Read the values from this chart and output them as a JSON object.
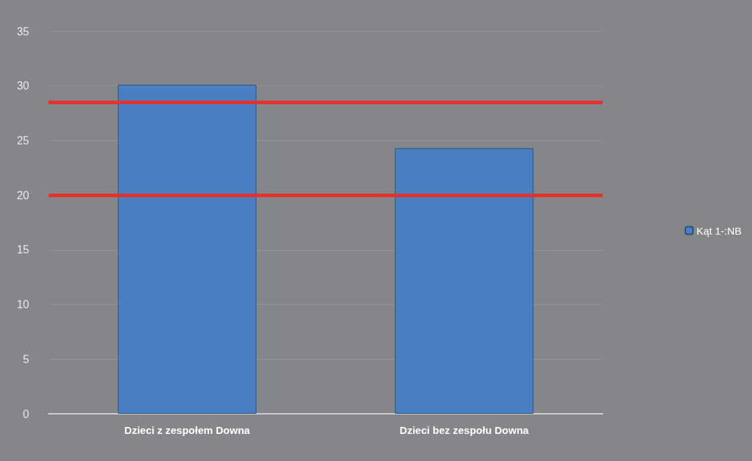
{
  "chart_data": {
    "type": "bar",
    "categories": [
      "Dzieci z zespołem Downa",
      "Dzieci bez zespołu Downa"
    ],
    "series": [
      {
        "name": "Kąt 1-:NB",
        "color": "#4a7fc1",
        "values": [
          30.1,
          24.3
        ]
      }
    ],
    "ylim": [
      0,
      35
    ],
    "yticks": [
      0,
      5,
      10,
      15,
      20,
      25,
      30,
      35
    ],
    "grid": "y",
    "legend": "right",
    "ref_lines": [
      {
        "axis": "y",
        "value": 28.5,
        "color": "#e8302a"
      },
      {
        "axis": "y",
        "value": 20,
        "color": "#e8302a"
      }
    ]
  }
}
